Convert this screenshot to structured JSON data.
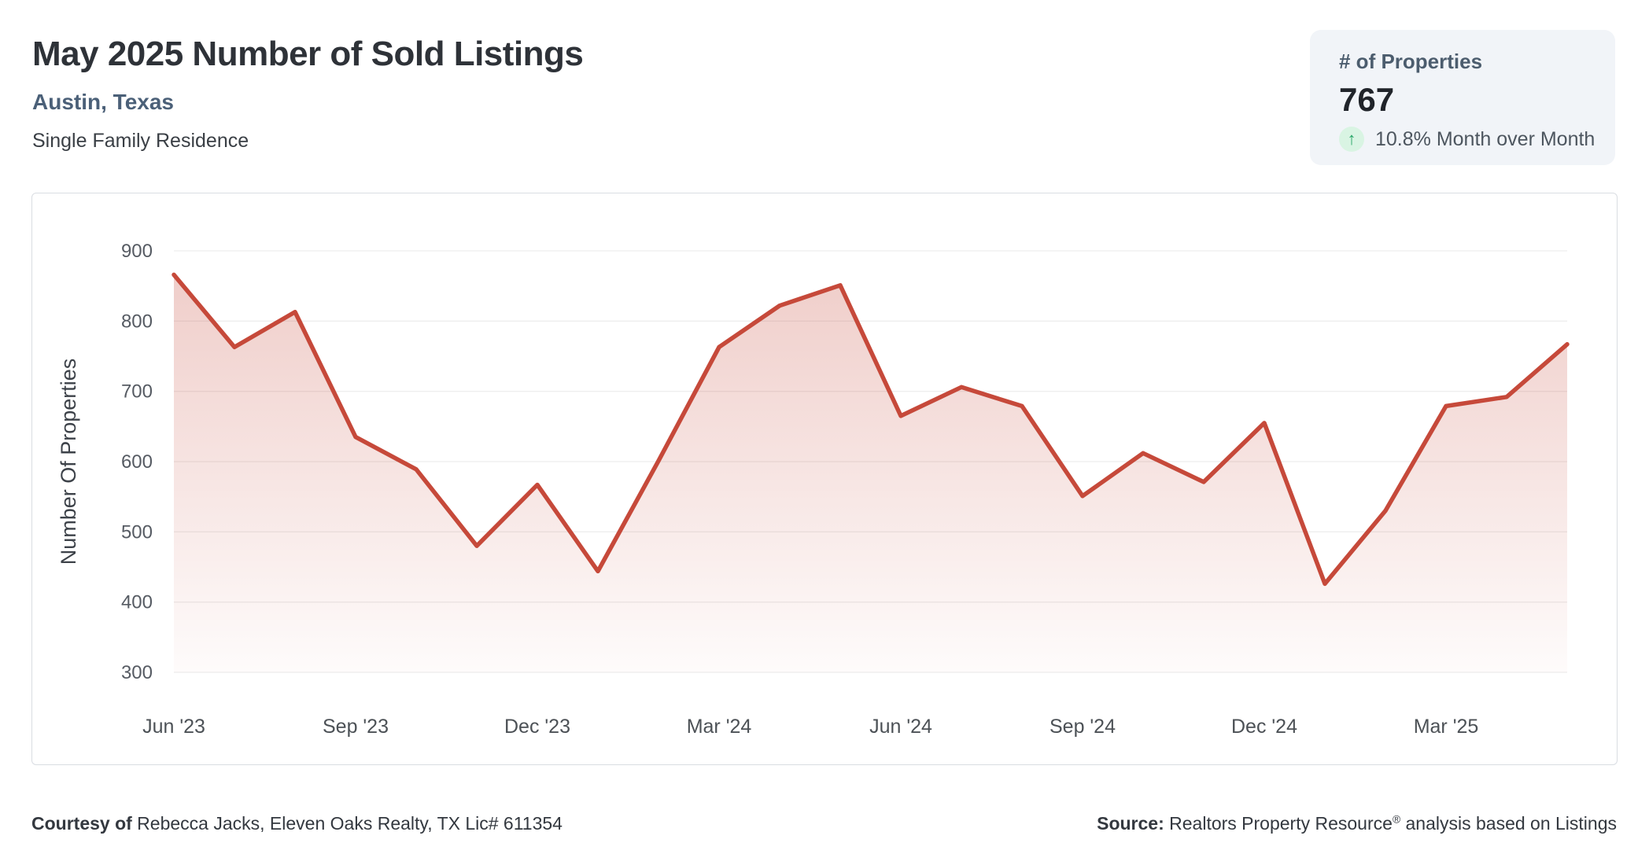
{
  "header": {
    "title": "May 2025 Number of Sold Listings",
    "subtitle": "Austin, Texas",
    "property_type": "Single Family Residence"
  },
  "stat_card": {
    "label": "# of Properties",
    "value": "767",
    "trend_arrow": "↑",
    "trend_text": "10.8% Month over Month",
    "trend_color": "#27a567",
    "trend_bg": "#d9f4e3"
  },
  "chart_data": {
    "type": "area",
    "title": "",
    "x": [
      "Jun '23",
      "Jul '23",
      "Aug '23",
      "Sep '23",
      "Oct '23",
      "Nov '23",
      "Dec '23",
      "Jan '24",
      "Feb '24",
      "Mar '24",
      "Apr '24",
      "May '24",
      "Jun '24",
      "Jul '24",
      "Aug '24",
      "Sep '24",
      "Oct '24",
      "Nov '24",
      "Dec '24",
      "Jan '25",
      "Feb '25",
      "Mar '25",
      "Apr '25",
      "May '25"
    ],
    "values": [
      866,
      763,
      813,
      635,
      589,
      480,
      567,
      444,
      601,
      763,
      822,
      851,
      665,
      706,
      679,
      551,
      612,
      571,
      655,
      426,
      530,
      679,
      692,
      767
    ],
    "xlabel": "",
    "ylabel": "Number Of Properties",
    "ylim": [
      300,
      900
    ],
    "ytick_step": 100,
    "xtick_every": 3,
    "grid": true,
    "legend": "none",
    "line_color": "#c6493a",
    "area_fill_top_opacity": 0.27,
    "area_fill_bottom_opacity": 0.02
  },
  "footer": {
    "courtesy_bold": "Courtesy of",
    "courtesy_text": " Rebecca Jacks, Eleven Oaks Realty, TX Lic# 611354",
    "source_bold": "Source:",
    "source_text_pre": " Realtors Property Resource",
    "source_reg": "®",
    "source_text_post": " analysis based on Listings"
  }
}
